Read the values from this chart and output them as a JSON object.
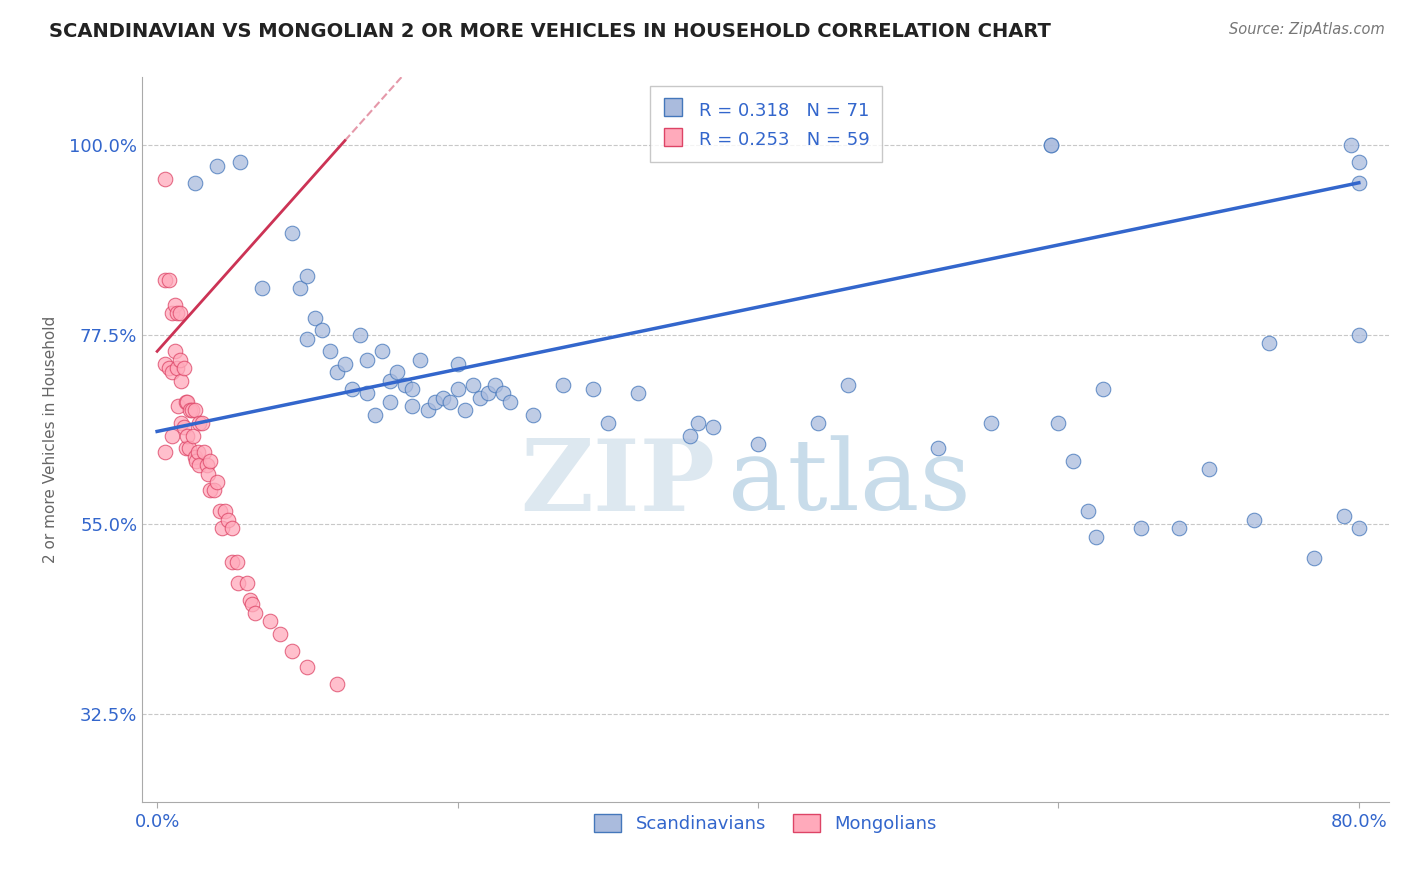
{
  "title": "SCANDINAVIAN VS MONGOLIAN 2 OR MORE VEHICLES IN HOUSEHOLD CORRELATION CHART",
  "source": "Source: ZipAtlas.com",
  "ylabel": "2 or more Vehicles in Household",
  "xlim": [
    -0.01,
    0.82
  ],
  "ylim": [
    0.22,
    1.08
  ],
  "xtick_positions": [
    0.0,
    0.2,
    0.4,
    0.6,
    0.8
  ],
  "xticklabels": [
    "0.0%",
    "",
    "",
    "",
    "80.0%"
  ],
  "ytick_positions": [
    0.325,
    0.55,
    0.775,
    1.0
  ],
  "ytick_labels": [
    "32.5%",
    "55.0%",
    "77.5%",
    "100.0%"
  ],
  "grid_color": "#c8c8c8",
  "background_color": "#ffffff",
  "blue_fill": "#aabbdd",
  "blue_edge": "#4477bb",
  "pink_fill": "#ffaabb",
  "pink_edge": "#dd4466",
  "blue_line_color": "#3366cc",
  "pink_line_color": "#cc3355",
  "legend_line1": "R = 0.318   N = 71",
  "legend_line2": "R = 0.253   N = 59",
  "legend_label_blue": "Scandinavians",
  "legend_label_pink": "Mongolians",
  "watermark_zip": "ZIP",
  "watermark_atlas": "atlas",
  "blue_scatter_x": [
    0.025,
    0.04,
    0.055,
    0.07,
    0.09,
    0.095,
    0.1,
    0.1,
    0.105,
    0.11,
    0.115,
    0.12,
    0.125,
    0.13,
    0.135,
    0.14,
    0.14,
    0.145,
    0.15,
    0.155,
    0.155,
    0.16,
    0.165,
    0.17,
    0.17,
    0.175,
    0.18,
    0.185,
    0.19,
    0.195,
    0.2,
    0.2,
    0.205,
    0.21,
    0.215,
    0.22,
    0.225,
    0.23,
    0.235,
    0.25,
    0.27,
    0.29,
    0.3,
    0.32,
    0.355,
    0.36,
    0.37,
    0.4,
    0.44,
    0.46,
    0.52,
    0.555,
    0.595,
    0.595,
    0.6,
    0.61,
    0.62,
    0.625,
    0.63,
    0.655,
    0.68,
    0.7,
    0.73,
    0.74,
    0.77,
    0.79,
    0.795,
    0.8,
    0.8,
    0.8,
    0.8
  ],
  "blue_scatter_y": [
    0.955,
    0.975,
    0.98,
    0.83,
    0.895,
    0.83,
    0.845,
    0.77,
    0.795,
    0.78,
    0.755,
    0.73,
    0.74,
    0.71,
    0.775,
    0.705,
    0.745,
    0.68,
    0.755,
    0.72,
    0.695,
    0.73,
    0.715,
    0.69,
    0.71,
    0.745,
    0.685,
    0.695,
    0.7,
    0.695,
    0.71,
    0.74,
    0.685,
    0.715,
    0.7,
    0.705,
    0.715,
    0.705,
    0.695,
    0.68,
    0.715,
    0.71,
    0.67,
    0.705,
    0.655,
    0.67,
    0.665,
    0.645,
    0.67,
    0.715,
    0.64,
    0.67,
    1.0,
    1.0,
    0.67,
    0.625,
    0.565,
    0.535,
    0.71,
    0.545,
    0.545,
    0.615,
    0.555,
    0.765,
    0.51,
    0.56,
    1.0,
    0.955,
    0.98,
    0.775,
    0.545
  ],
  "pink_scatter_x": [
    0.005,
    0.005,
    0.005,
    0.005,
    0.008,
    0.008,
    0.01,
    0.01,
    0.01,
    0.012,
    0.012,
    0.013,
    0.013,
    0.014,
    0.015,
    0.015,
    0.016,
    0.016,
    0.018,
    0.018,
    0.019,
    0.019,
    0.02,
    0.02,
    0.021,
    0.022,
    0.023,
    0.024,
    0.025,
    0.025,
    0.026,
    0.027,
    0.028,
    0.028,
    0.03,
    0.031,
    0.033,
    0.034,
    0.035,
    0.035,
    0.038,
    0.04,
    0.042,
    0.043,
    0.045,
    0.047,
    0.05,
    0.05,
    0.053,
    0.054,
    0.06,
    0.062,
    0.063,
    0.065,
    0.075,
    0.082,
    0.09,
    0.1,
    0.12
  ],
  "pink_scatter_y": [
    0.96,
    0.84,
    0.74,
    0.635,
    0.84,
    0.735,
    0.8,
    0.73,
    0.655,
    0.81,
    0.755,
    0.8,
    0.735,
    0.69,
    0.8,
    0.745,
    0.72,
    0.67,
    0.735,
    0.665,
    0.695,
    0.64,
    0.695,
    0.655,
    0.64,
    0.685,
    0.685,
    0.655,
    0.685,
    0.63,
    0.625,
    0.635,
    0.67,
    0.62,
    0.67,
    0.635,
    0.62,
    0.61,
    0.625,
    0.59,
    0.59,
    0.6,
    0.565,
    0.545,
    0.565,
    0.555,
    0.545,
    0.505,
    0.505,
    0.48,
    0.48,
    0.46,
    0.455,
    0.445,
    0.435,
    0.42,
    0.4,
    0.38,
    0.36
  ],
  "blue_trend_x": [
    0.0,
    0.8
  ],
  "blue_trend_y": [
    0.66,
    0.955
  ],
  "pink_trend_x": [
    0.0,
    0.125
  ],
  "pink_trend_y": [
    0.755,
    1.005
  ]
}
